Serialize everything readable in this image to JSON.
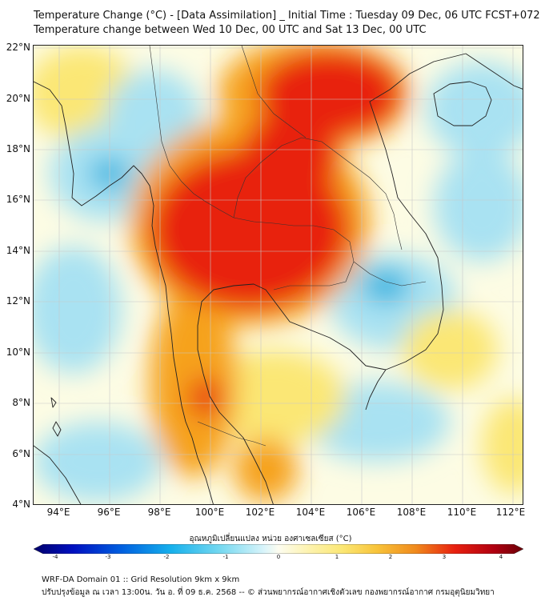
{
  "title_line1": "Temperature Change (°C) - [Data Assimilation] _ Initial Time : Tuesday 09 Dec, 06 UTC FCST+072",
  "title_line2": "Temperature change between Wed 10 Dec, 00 UTC and Sat 13 Dec, 00 UTC",
  "lat_labels": [
    "22°N",
    "20°N",
    "18°N",
    "16°N",
    "14°N",
    "12°N",
    "10°N",
    "8°N",
    "6°N",
    "4°N"
  ],
  "lon_labels": [
    "94°E",
    "96°E",
    "98°E",
    "100°E",
    "102°E",
    "104°E",
    "106°E",
    "108°E",
    "110°E",
    "112°E"
  ],
  "colorbar": {
    "title": "อุณหภูมิเปลี่ยนแปลง หน่วย องศาเซลเซียส (°C)",
    "min": -4,
    "max": 4,
    "tick_labels": [
      "-4",
      "-3",
      "-2",
      "-1",
      "0",
      "1",
      "2",
      "3",
      "4"
    ]
  },
  "footer_line1": "WRF-DA Domain 01 :: Grid Resolution 9km x 9km",
  "footer_line2": "ปรับปรุงข้อมูล ณ เวลา 13:00น. วัน อ. ที่ 09 ธ.ค. 2568 -- © ส่วนพยากรณ์อากาศเชิงตัวเลข กองพยากรณ์อากาศ กรมอุตุนิยมวิทยา",
  "colors": {
    "hot": "#e8200f",
    "warm": "#f6a21c",
    "mild": "#fbe774",
    "neutral": "#fdfce4",
    "cool": "#a9e2f2",
    "cold": "#2fb4e0"
  }
}
